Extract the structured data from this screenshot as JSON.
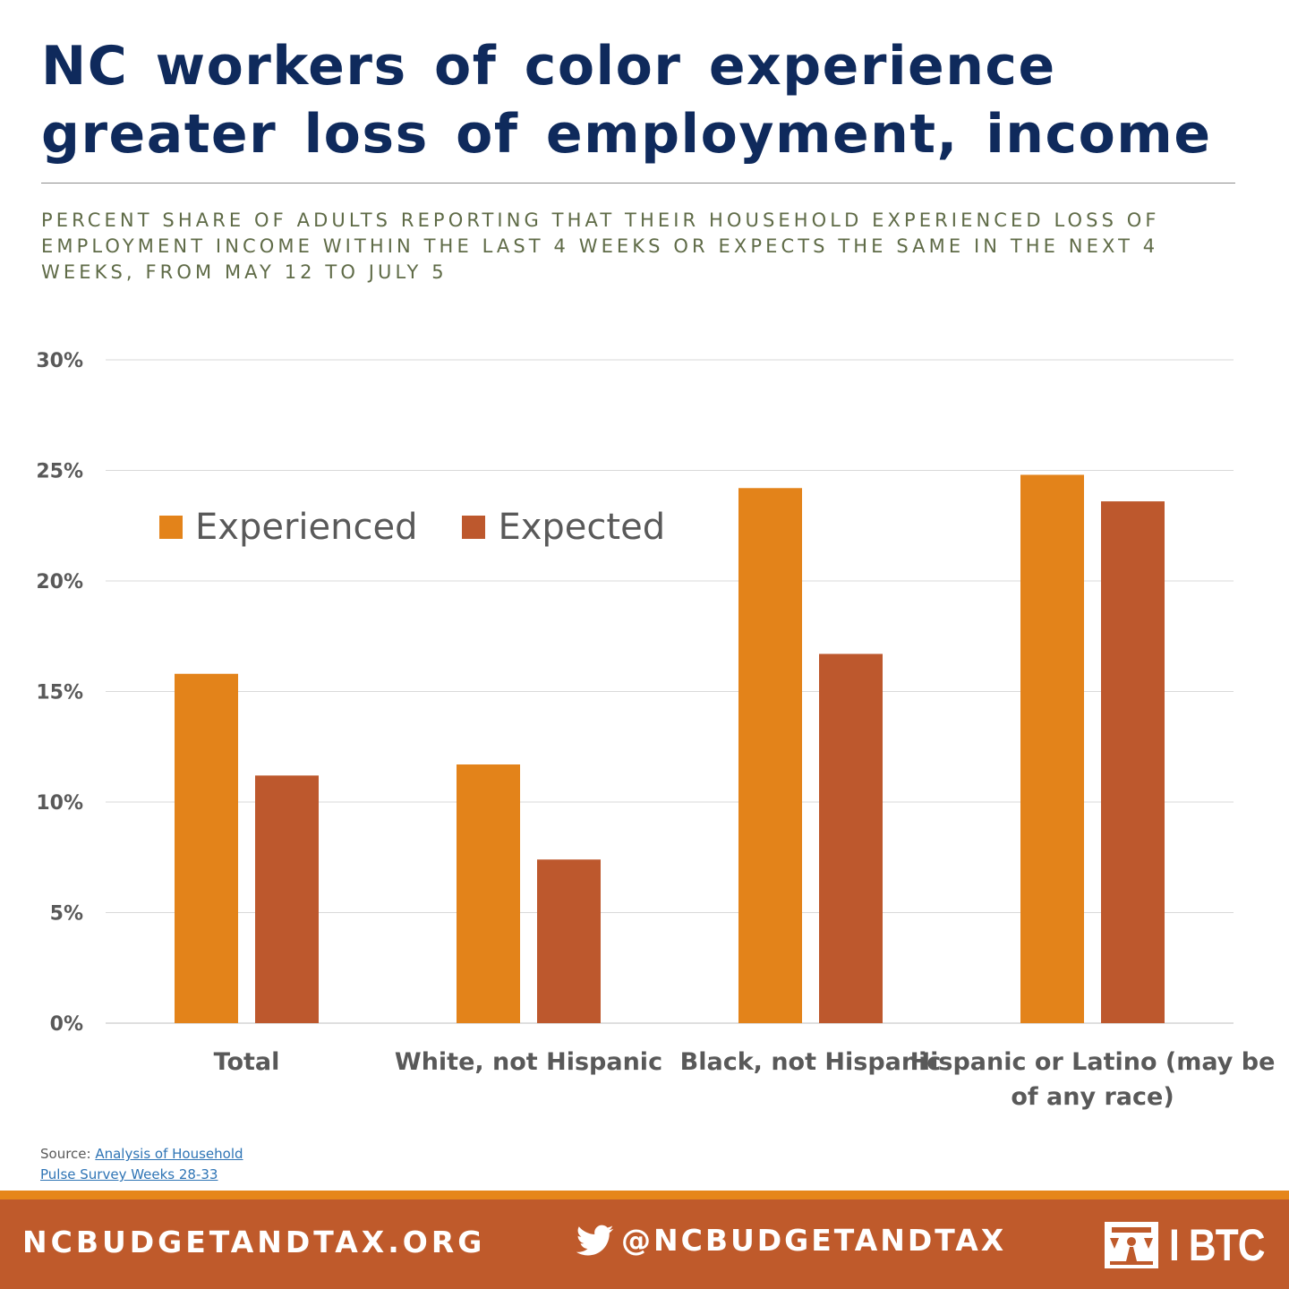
{
  "title": "NC workers of color experience greater loss of employment, income",
  "subtitle": "PERCENT SHARE OF ADULTS REPORTING THAT THEIR HOUSEHOLD EXPERIENCED LOSS OF EMPLOYMENT INCOME WITHIN THE LAST 4 WEEKS OR EXPECTS THE SAME IN THE NEXT 4 WEEKS, FROM MAY 12 TO JULY 5",
  "source": {
    "prefix": "Source: ",
    "link_text": "Analysis of Household Pulse Survey Weeks 28-33"
  },
  "footer": {
    "website": "NCBUDGETANDTAX.ORG",
    "twitter": "@NCBUDGETANDTAX",
    "logo_text": "I BTC",
    "icons": {
      "twitter": "twitter-bird-icon",
      "logo": "btc-logo-icon"
    }
  },
  "colors": {
    "title": "#0f2a5c",
    "subtitle": "#5f6b47",
    "experienced": "#e3831a",
    "expected": "#bd582d",
    "footer_background": "#bf5a2b",
    "footer_accent": "#e6861a",
    "gridline": "#d9d9d9",
    "axis_text": "#595959"
  },
  "chart_data": {
    "type": "bar",
    "categories": [
      "Total",
      "White, not Hispanic",
      "Black, not Hispanic",
      "Hispanic or Latino (may be of any race)"
    ],
    "series": [
      {
        "name": "Experienced",
        "values": [
          15.8,
          11.7,
          24.2,
          24.8
        ]
      },
      {
        "name": "Expected",
        "values": [
          11.2,
          7.4,
          16.7,
          23.6
        ]
      }
    ],
    "yticks": [
      "0%",
      "5%",
      "10%",
      "15%",
      "20%",
      "25%",
      "30%"
    ],
    "ylim": [
      0,
      30
    ],
    "legend_position": "top-left",
    "grid": true
  }
}
